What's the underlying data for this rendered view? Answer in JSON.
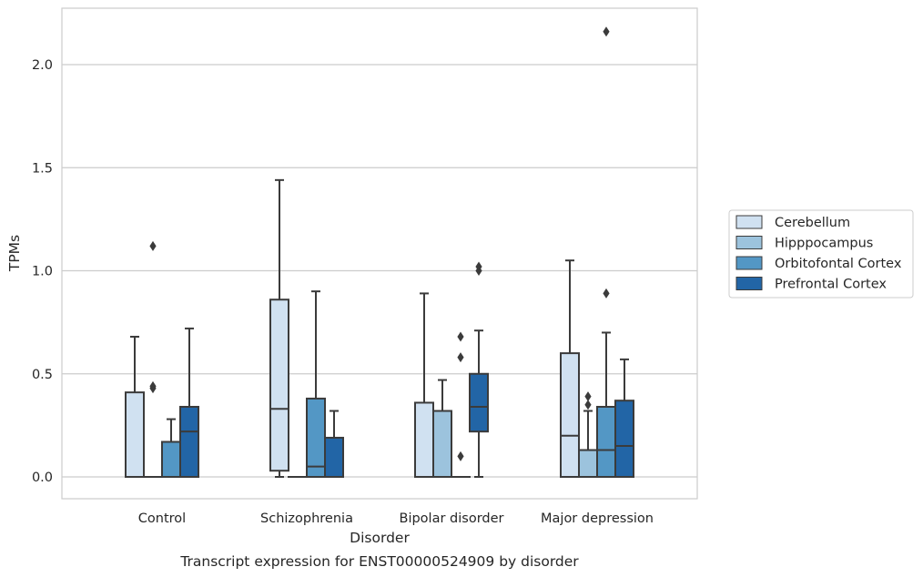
{
  "chart_data": {
    "type": "box",
    "xlabel": "Disorder",
    "ylabel": "TPMs",
    "caption": "Transcript expression for ENST00000524909 by disorder",
    "categories": [
      "Control",
      "Schizophrenia",
      "Bipolar disorder",
      "Major depression"
    ],
    "ylim": [
      -0.1,
      2.27
    ],
    "yticks": [
      "0.0",
      "0.5",
      "1.0",
      "1.5",
      "2.0"
    ],
    "grid": true,
    "legend_position": "center-right",
    "series": [
      {
        "name": "Cerebellum",
        "color": "#d0e1f1",
        "boxes": [
          {
            "whisker_low": 0.0,
            "q1": 0.0,
            "median": 0.0,
            "q3": 0.41,
            "whisker_high": 0.68,
            "outliers": []
          },
          {
            "whisker_low": 0.0,
            "q1": 0.03,
            "median": 0.33,
            "q3": 0.86,
            "whisker_high": 1.44,
            "outliers": []
          },
          {
            "whisker_low": 0.0,
            "q1": 0.0,
            "median": 0.0,
            "q3": 0.36,
            "whisker_high": 0.89,
            "outliers": []
          },
          {
            "whisker_low": 0.0,
            "q1": 0.0,
            "median": 0.2,
            "q3": 0.6,
            "whisker_high": 1.05,
            "outliers": []
          }
        ]
      },
      {
        "name": "Hipppocampus",
        "color": "#9cc3dd",
        "boxes": [
          {
            "whisker_low": 0.0,
            "q1": 0.0,
            "median": 0.0,
            "q3": 0.0,
            "whisker_high": 0.0,
            "outliers": [
              1.12,
              0.43,
              0.44
            ]
          },
          {
            "whisker_low": 0.0,
            "q1": 0.0,
            "median": 0.0,
            "q3": 0.0,
            "whisker_high": 0.0,
            "outliers": []
          },
          {
            "whisker_low": 0.0,
            "q1": 0.0,
            "median": 0.0,
            "q3": 0.32,
            "whisker_high": 0.47,
            "outliers": []
          },
          {
            "whisker_low": 0.0,
            "q1": 0.0,
            "median": 0.13,
            "q3": 0.13,
            "whisker_high": 0.32,
            "outliers": [
              0.39,
              0.35
            ]
          }
        ]
      },
      {
        "name": "Orbitofontal Cortex",
        "color": "#5397c5",
        "boxes": [
          {
            "whisker_low": 0.0,
            "q1": 0.0,
            "median": 0.0,
            "q3": 0.17,
            "whisker_high": 0.28,
            "outliers": []
          },
          {
            "whisker_low": 0.0,
            "q1": 0.0,
            "median": 0.05,
            "q3": 0.38,
            "whisker_high": 0.9,
            "outliers": []
          },
          {
            "whisker_low": 0.0,
            "q1": 0.0,
            "median": 0.0,
            "q3": 0.0,
            "whisker_high": 0.0,
            "outliers": [
              0.68,
              0.58,
              0.1
            ]
          },
          {
            "whisker_low": 0.0,
            "q1": 0.0,
            "median": 0.13,
            "q3": 0.34,
            "whisker_high": 0.7,
            "outliers": [
              0.89,
              2.16
            ]
          }
        ]
      },
      {
        "name": "Prefrontal Cortex",
        "color": "#2265a6",
        "boxes": [
          {
            "whisker_low": 0.0,
            "q1": 0.0,
            "median": 0.22,
            "q3": 0.34,
            "whisker_high": 0.72,
            "outliers": []
          },
          {
            "whisker_low": 0.0,
            "q1": 0.0,
            "median": 0.0,
            "q3": 0.19,
            "whisker_high": 0.32,
            "outliers": []
          },
          {
            "whisker_low": 0.0,
            "q1": 0.22,
            "median": 0.34,
            "q3": 0.5,
            "whisker_high": 0.71,
            "outliers": [
              1.0,
              1.02
            ]
          },
          {
            "whisker_low": 0.0,
            "q1": 0.0,
            "median": 0.15,
            "q3": 0.37,
            "whisker_high": 0.57,
            "outliers": []
          }
        ]
      }
    ]
  }
}
